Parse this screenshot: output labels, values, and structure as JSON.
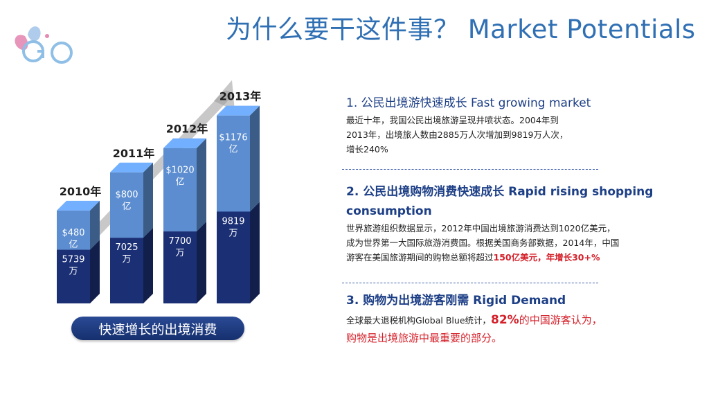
{
  "header": {
    "title": "为什么要干这件事？ Market Potentials"
  },
  "logo": {
    "name": "go-butterfly-logo",
    "text": "GO"
  },
  "chart_data": {
    "type": "bar",
    "categories": [
      "2010年",
      "2011年",
      "2012年",
      "2013年"
    ],
    "series": [
      {
        "values": [
          5739,
          7025,
          7700,
          9819
        ],
        "labels": [
          "5739 万",
          "7025 万",
          "7700 万",
          "9819 万"
        ],
        "color": "#1b2f74"
      },
      {
        "values": [
          480,
          800,
          1020,
          1176
        ],
        "labels": [
          "$480 亿",
          "$800 亿",
          "$1020 亿",
          "$1176 亿"
        ],
        "color": "#5b8dd0"
      }
    ],
    "caption": "快速增长的出境消费"
  },
  "sections": [
    {
      "heading": "1. 公民出境游快速成长 Fast growing market",
      "body_lines": [
        "最近十年，我国公民出境旅游呈现井喷状态。2004年到",
        "2013年，出境旅人数由2885万人次增加到9819万人次，",
        "增长240%"
      ]
    },
    {
      "heading_line1": "2. 公民出境购物消费快速成长 Rapid rising  shopping",
      "heading_line2": "consumption",
      "body_lines": [
        "世界旅游组织数据显示，2012年中国出境旅游消费达到1020亿美元，",
        "成为世界第一大国际旅游消费国。根据美国商务部数据，2014年，中国"
      ],
      "body_line3_prefix": "游客在美国旅游期间的购物总额将超过",
      "body_line3_highlight": "150亿美元，年增长30+%"
    },
    {
      "heading": "3. 购物为出境游客刚需 Rigid Demand",
      "body_prefix": "全球最大退税机构Global Blue统计，",
      "body_highlight": "82%",
      "body_suffix": "的中国游客认为，",
      "body_line2": "购物是出境旅游中最重要的部分。"
    }
  ]
}
